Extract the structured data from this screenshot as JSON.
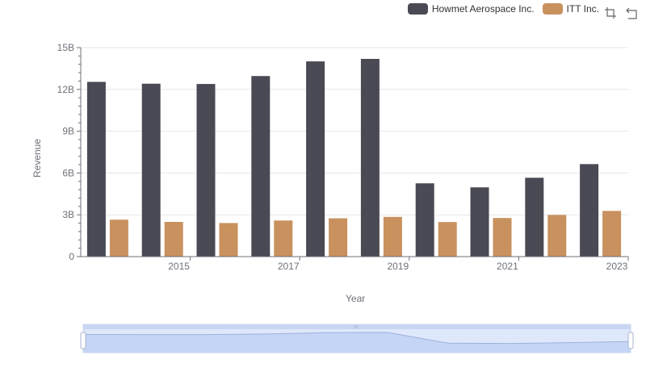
{
  "colors": {
    "howmet": "#4a4a55",
    "itt": "#c8915e",
    "grid": "#e6e6e6",
    "axis": "#6e7079"
  },
  "legend": {
    "items": [
      {
        "label": "Howmet Aerospace Inc.",
        "color": "#4a4a55"
      },
      {
        "label": "ITT Inc.",
        "color": "#c8915e"
      }
    ]
  },
  "toolbox": {
    "icons": [
      "zoom-icon",
      "restore-icon"
    ]
  },
  "chart_data": {
    "type": "bar",
    "categories": [
      "2014",
      "2015",
      "2016",
      "2017",
      "2018",
      "2019",
      "2020",
      "2021",
      "2022",
      "2023"
    ],
    "x_tick_labels": [
      "2015",
      "2017",
      "2019",
      "2021",
      "2023"
    ],
    "xlabel": "Year",
    "ylabel": "Revenue",
    "ylim": [
      0,
      15000000000
    ],
    "y_tick_labels": [
      "0",
      "3B",
      "6B",
      "9B",
      "12B",
      "15B"
    ],
    "grid": true,
    "legend_position": "top-right",
    "series": [
      {
        "name": "Howmet Aerospace Inc.",
        "values": [
          12540000000,
          12410000000,
          12390000000,
          12960000000,
          14010000000,
          14190000000,
          5260000000,
          4970000000,
          5660000000,
          6640000000
        ]
      },
      {
        "name": "ITT Inc.",
        "values": [
          2650000000,
          2490000000,
          2410000000,
          2590000000,
          2750000000,
          2850000000,
          2480000000,
          2770000000,
          2990000000,
          3280000000
        ]
      }
    ]
  }
}
